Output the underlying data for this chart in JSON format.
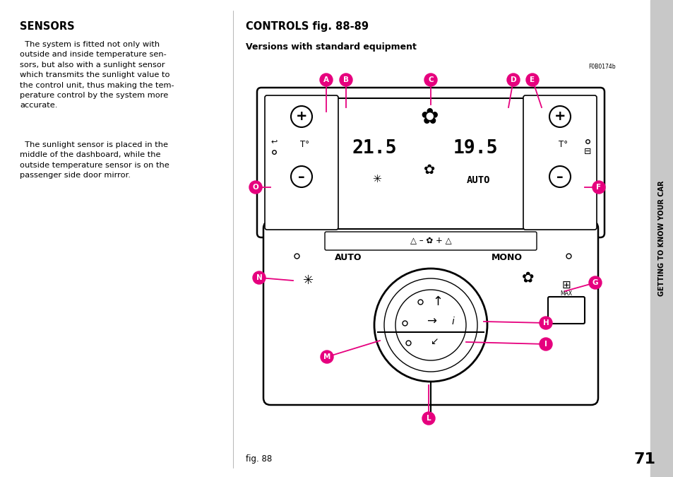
{
  "bg_color": "#ffffff",
  "left_title": "SENSORS",
  "left_para1": "  The system is fitted not only with\noutside and inside temperature sen-\nsors, but also with a sunlight sensor\nwhich transmits the sunlight value to\nthe control unit, thus making the tem-\nperature control by the system more\naccurate.",
  "left_para2": "  The sunlight sensor is placed in the\nmiddle of the dashboard, while the\noutside temperature sensor is on the\npassenger side door mirror.",
  "right_title": "CONTROLS fig. 88-89",
  "right_subtitle": "Versions with standard equipment",
  "ref_code": "F0B0174b",
  "fig_label": "fig. 88",
  "page_number": "71",
  "sidebar_text": "GETTING TO KNOW YOUR CAR",
  "label_color": "#e6007e",
  "sidebar_bg": "#c8c8c8",
  "temp_left": "21.5",
  "temp_right": "19.5",
  "auto_text": "AUTO",
  "auto_btn": "AUTO",
  "mono_btn": "MONO"
}
